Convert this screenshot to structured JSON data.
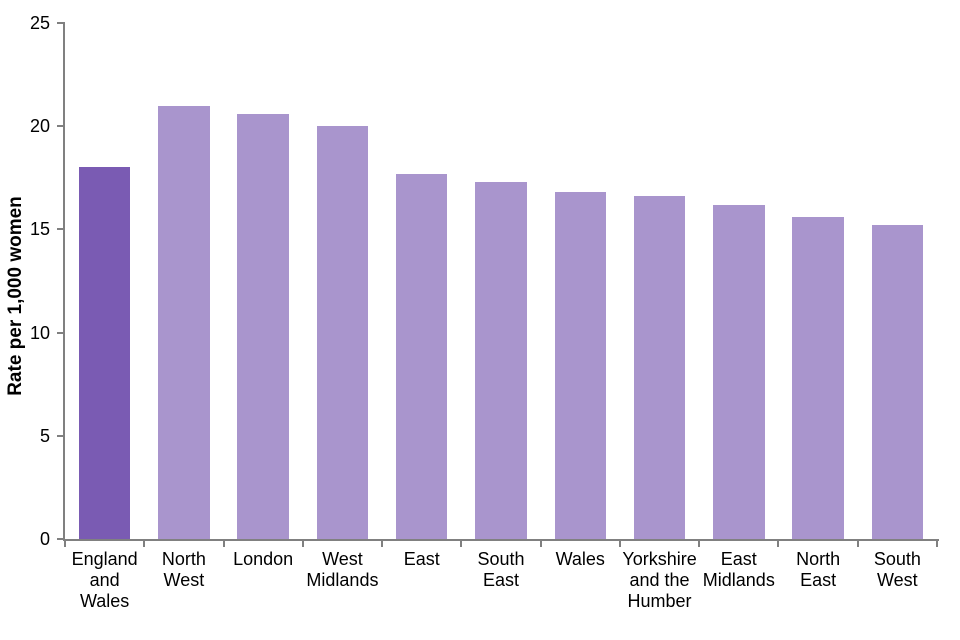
{
  "chart_data": {
    "type": "bar",
    "title": "",
    "ylabel": "Rate per 1,000 women",
    "xlabel": "",
    "ylim": [
      0,
      25
    ],
    "yticks": [
      0,
      5,
      10,
      15,
      20,
      25
    ],
    "categories": [
      "England and Wales",
      "North West",
      "London",
      "West Midlands",
      "East",
      "South East",
      "Wales",
      "Yorkshire and the Humber",
      "East Midlands",
      "North East",
      "South West"
    ],
    "values": [
      18.0,
      21.0,
      20.6,
      20.0,
      17.7,
      17.3,
      16.8,
      16.6,
      16.2,
      15.6,
      15.2
    ],
    "highlight_index": 0,
    "grid": false,
    "legend_position": "none",
    "colors": {
      "highlight_bar": "#7A5BB3",
      "default_bar": "#A995CD",
      "axis": "#808080",
      "text": "#000000",
      "background": "#FFFFFF"
    }
  }
}
